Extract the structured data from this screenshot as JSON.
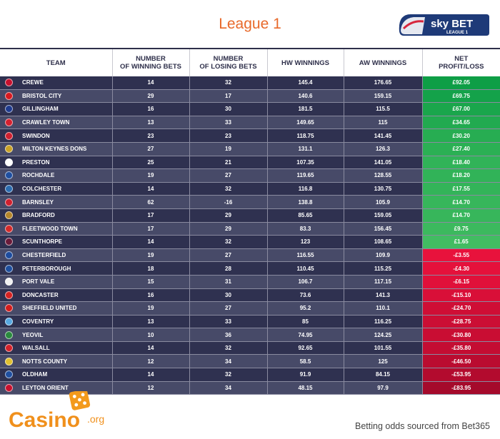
{
  "title": "League 1",
  "brand": {
    "name": "sky BET",
    "sub": "LEAGUE 1"
  },
  "headers": [
    "TEAM",
    "NUMBER\nOF WINNING BETS",
    "NUMBER\nOF LOSING BETS",
    "HW WINNINGS",
    "AW WINNINGS",
    "NET\nPROFIT/LOSS"
  ],
  "rows": [
    {
      "team": "CREWE",
      "win": "14",
      "lose": "32",
      "hw": "145.4",
      "aw": "176.65",
      "net": "£92.05",
      "color": "#0e9e46",
      "badge": "#c8102e"
    },
    {
      "team": "BRISTOL CITY",
      "win": "29",
      "lose": "17",
      "hw": "140.6",
      "aw": "159.15",
      "net": "£69.75",
      "color": "#14a24a",
      "badge": "#d71920"
    },
    {
      "team": "GILLINGHAM",
      "win": "16",
      "lose": "30",
      "hw": "181.5",
      "aw": "115.5",
      "net": "£67.00",
      "color": "#1aa64c",
      "badge": "#1f3b8f"
    },
    {
      "team": "CRAWLEY TOWN",
      "win": "13",
      "lose": "33",
      "hw": "149.65",
      "aw": "115",
      "net": "£34.65",
      "color": "#22aa50",
      "badge": "#d6202f"
    },
    {
      "team": "SWINDON",
      "win": "23",
      "lose": "23",
      "hw": "118.75",
      "aw": "141.45",
      "net": "£30.20",
      "color": "#27ad52",
      "badge": "#cf2030"
    },
    {
      "team": "MILTON KEYNES DONS",
      "win": "27",
      "lose": "19",
      "hw": "131.1",
      "aw": "126.3",
      "net": "£27.40",
      "color": "#2bb054",
      "badge": "#c9a227"
    },
    {
      "team": "PRESTON",
      "win": "25",
      "lose": "21",
      "hw": "107.35",
      "aw": "141.05",
      "net": "£18.40",
      "color": "#31b358",
      "badge": "#ffffff"
    },
    {
      "team": "ROCHDALE",
      "win": "19",
      "lose": "27",
      "hw": "119.65",
      "aw": "128.55",
      "net": "£18.20",
      "color": "#31b358",
      "badge": "#1f4fa0"
    },
    {
      "team": "COLCHESTER",
      "win": "14",
      "lose": "32",
      "hw": "116.8",
      "aw": "130.75",
      "net": "£17.55",
      "color": "#33b459",
      "badge": "#2b6cb0"
    },
    {
      "team": "BARNSLEY",
      "win": "62",
      "lose": "-16",
      "hw": "138.8",
      "aw": "105.9",
      "net": "£14.70",
      "color": "#37b65b",
      "badge": "#d0202e"
    },
    {
      "team": "BRADFORD",
      "win": "17",
      "lose": "29",
      "hw": "85.65",
      "aw": "159.05",
      "net": "£14.70",
      "color": "#37b65b",
      "badge": "#b5862b"
    },
    {
      "team": "FLEETWOOD TOWN",
      "win": "17",
      "lose": "29",
      "hw": "83.3",
      "aw": "156.45",
      "net": "£9.75",
      "color": "#3cb95e",
      "badge": "#d42a2a"
    },
    {
      "team": "SCUNTHORPE",
      "win": "14",
      "lose": "32",
      "hw": "123",
      "aw": "108.65",
      "net": "£1.65",
      "color": "#42bc62",
      "badge": "#6a1b3a"
    },
    {
      "team": "CHESTERFIELD",
      "win": "19",
      "lose": "27",
      "hw": "116.55",
      "aw": "109.9",
      "net": "-£3.55",
      "color": "#e8123c",
      "badge": "#1d4c9e"
    },
    {
      "team": "PETERBOROUGH",
      "win": "18",
      "lose": "28",
      "hw": "110.45",
      "aw": "115.25",
      "net": "-£4.30",
      "color": "#e5113b",
      "badge": "#1e4f9e"
    },
    {
      "team": "PORT VALE",
      "win": "15",
      "lose": "31",
      "hw": "106.7",
      "aw": "117.15",
      "net": "-£6.15",
      "color": "#e0103a",
      "badge": "#f1f1f1"
    },
    {
      "team": "DONCASTER",
      "win": "16",
      "lose": "30",
      "hw": "73.6",
      "aw": "141.3",
      "net": "-£15.10",
      "color": "#d90f38",
      "badge": "#d62222"
    },
    {
      "team": "SHEFFIELD UNITED",
      "win": "19",
      "lose": "27",
      "hw": "95.2",
      "aw": "110.1",
      "net": "-£24.70",
      "color": "#cf0e35",
      "badge": "#d21c1c"
    },
    {
      "team": "COVENTRY",
      "win": "13",
      "lose": "33",
      "hw": "85",
      "aw": "116.25",
      "net": "-£28.75",
      "color": "#cb0e34",
      "badge": "#57a8e0"
    },
    {
      "team": "YEOVIL",
      "win": "10",
      "lose": "36",
      "hw": "74.95",
      "aw": "124.25",
      "net": "-£30.80",
      "color": "#c90d33",
      "badge": "#2a8a3e"
    },
    {
      "team": "WALSALL",
      "win": "14",
      "lose": "32",
      "hw": "92.65",
      "aw": "101.55",
      "net": "-£35.80",
      "color": "#c40d32",
      "badge": "#d3212a"
    },
    {
      "team": "NOTTS COUNTY",
      "win": "12",
      "lose": "34",
      "hw": "58.5",
      "aw": "125",
      "net": "-£46.50",
      "color": "#ba0c30",
      "badge": "#e0c030"
    },
    {
      "team": "OLDHAM",
      "win": "14",
      "lose": "32",
      "hw": "91.9",
      "aw": "84.15",
      "net": "-£53.95",
      "color": "#b30b2e",
      "badge": "#1f4fa0"
    },
    {
      "team": "LEYTON ORIENT",
      "win": "12",
      "lose": "34",
      "hw": "48.15",
      "aw": "97.9",
      "net": "-£83.95",
      "color": "#a50a2b",
      "badge": "#c8102e"
    }
  ],
  "footer": {
    "logo_main": "Casino",
    "logo_suffix": ".org",
    "source": "Betting odds sourced from Bet365"
  }
}
